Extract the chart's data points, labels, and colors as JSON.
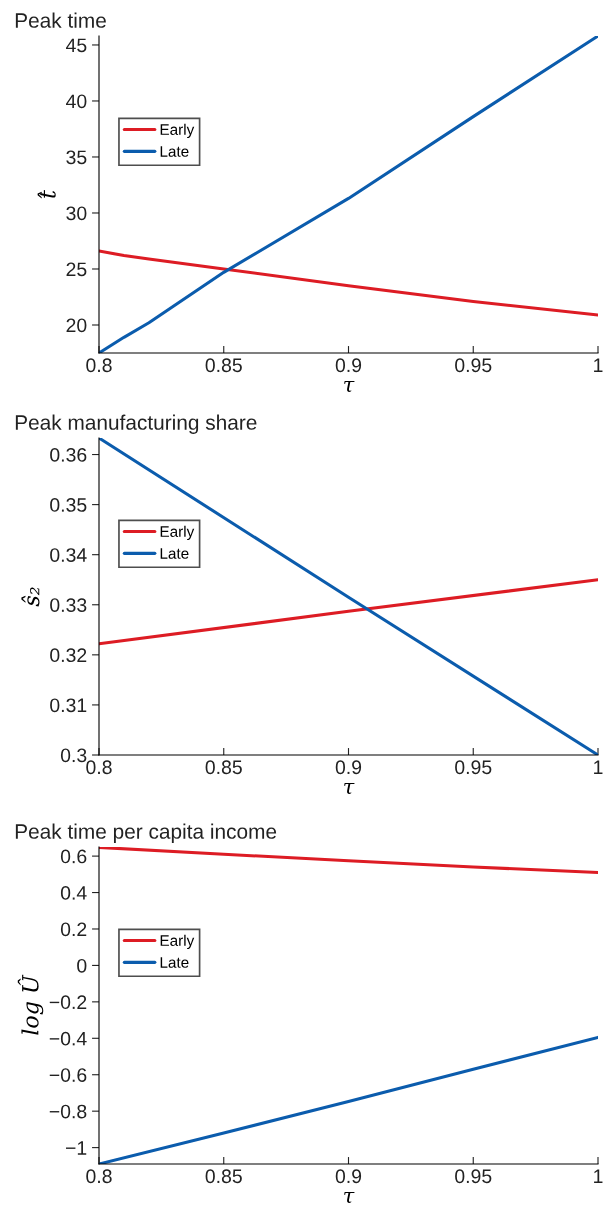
{
  "chart_data": [
    {
      "type": "line",
      "title": "Peak time",
      "xlabel": "τ",
      "ylabel": "t̂",
      "x": [
        0.8,
        0.81,
        0.82,
        0.85,
        0.9,
        0.95,
        1.0
      ],
      "xlim": [
        0.8,
        1.0
      ],
      "xticks": [
        0.8,
        0.85,
        0.9,
        0.95,
        1
      ],
      "ylim": [
        17.5,
        45.8
      ],
      "yticks": [
        20,
        25,
        30,
        35,
        40,
        45
      ],
      "legend": "top left",
      "grid": false,
      "series": [
        {
          "name": "Early",
          "color": "#dd1c24",
          "values": [
            26.6,
            26.2,
            25.9,
            25.0,
            23.5,
            22.1,
            20.9
          ]
        },
        {
          "name": "Late",
          "color": "#0b5cad",
          "values": [
            17.5,
            18.9,
            20.2,
            24.7,
            31.3,
            38.6,
            45.8
          ]
        }
      ]
    },
    {
      "type": "line",
      "title": "Peak manufacturing share",
      "xlabel": "τ",
      "ylabel": "ŝ₂",
      "x": [
        0.8,
        0.9,
        1.0
      ],
      "xlim": [
        0.8,
        1.0
      ],
      "xticks": [
        0.8,
        0.85,
        0.9,
        0.95,
        1
      ],
      "ylim": [
        0.3,
        0.3633
      ],
      "yticks": [
        0.3,
        0.31,
        0.32,
        0.33,
        0.34,
        0.35,
        0.36
      ],
      "legend": "top left",
      "grid": false,
      "series": [
        {
          "name": "Early",
          "color": "#dd1c24",
          "values": [
            0.3222,
            0.3287,
            0.335
          ]
        },
        {
          "name": "Late",
          "color": "#0b5cad",
          "values": [
            0.3633,
            0.3315,
            0.3
          ]
        }
      ]
    },
    {
      "type": "line",
      "title": "Peak time per capita income",
      "xlabel": "τ",
      "ylabel": "log Û",
      "x": [
        0.8,
        0.85,
        0.9,
        0.95,
        1.0
      ],
      "xlim": [
        0.8,
        1.0
      ],
      "xticks": [
        0.8,
        0.85,
        0.9,
        0.95,
        1
      ],
      "ylim": [
        -1.09,
        0.65
      ],
      "yticks": [
        {
          "value": -1,
          "label": "−1"
        },
        {
          "value": -0.8,
          "label": "−0.8"
        },
        {
          "value": -0.6,
          "label": "−0.6"
        },
        {
          "value": -0.4,
          "label": "−0.4"
        },
        {
          "value": -0.2,
          "label": "−0.2"
        },
        0,
        0.2,
        0.4,
        0.6
      ],
      "legend": "top left",
      "grid": false,
      "series": [
        {
          "name": "Early",
          "color": "#dd1c24",
          "values": [
            0.648,
            0.61,
            0.575,
            0.54,
            0.51
          ]
        },
        {
          "name": "Late",
          "color": "#0b5cad",
          "values": [
            -1.09,
            -0.92,
            -0.747,
            -0.57,
            -0.395
          ]
        }
      ]
    }
  ]
}
